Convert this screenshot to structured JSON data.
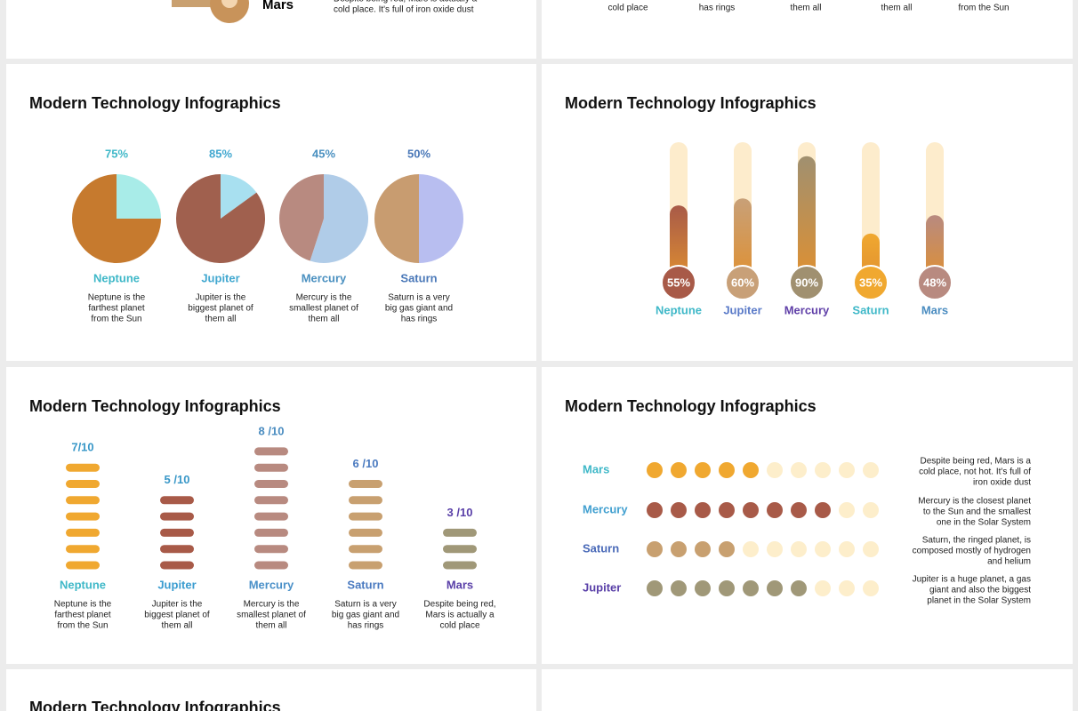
{
  "top_left": {
    "name": "Mars",
    "lines": [
      "Despite being red, Mars is actually a",
      "cold place. It's full of iron oxide dust"
    ]
  },
  "top_right": {
    "lines": [
      "cold place",
      "has rings",
      "them all",
      "them all",
      "from the Sun"
    ]
  },
  "pie_slide": {
    "title": "Modern Technology Infographics",
    "items": [
      {
        "name": "Neptune",
        "value": 75,
        "value_label": "75%",
        "color": "#c67a2e",
        "rest_color": "#a8ece8",
        "name_color": "#3fb8c8",
        "lines": [
          "Neptune is the",
          "farthest planet",
          "from the Sun"
        ]
      },
      {
        "name": "Jupiter",
        "value": 85,
        "value_label": "85%",
        "color": "#a0604e",
        "rest_color": "#a8e0f0",
        "name_color": "#42a8d0",
        "lines": [
          "Jupiter is the",
          "biggest planet of",
          "them all"
        ]
      },
      {
        "name": "Mercury",
        "value": 45,
        "value_label": "45%",
        "color": "#b88a80",
        "rest_color": "#b0cce8",
        "name_color": "#4a90c0",
        "lines": [
          "Mercury is the",
          "smallest planet of",
          "them all"
        ]
      },
      {
        "name": "Saturn",
        "value": 50,
        "value_label": "50%",
        "color": "#c89c70",
        "rest_color": "#b8bef0",
        "name_color": "#4a78b8",
        "lines": [
          "Saturn is a very",
          "big gas giant and",
          "has rings"
        ]
      }
    ]
  },
  "thermo_slide": {
    "title": "Modern Technology Infographics",
    "items": [
      {
        "name": "Neptune",
        "value": 55,
        "value_label": "55%",
        "color": "#a85a48",
        "name_color": "#3fb8c8"
      },
      {
        "name": "Jupiter",
        "value": 60,
        "value_label": "60%",
        "color": "#c8a078",
        "name_color": "#5a7ac8"
      },
      {
        "name": "Mercury",
        "value": 90,
        "value_label": "90%",
        "color": "#a09070",
        "name_color": "#6040a8"
      },
      {
        "name": "Saturn",
        "value": 35,
        "value_label": "35%",
        "color": "#f0a830",
        "name_color": "#3fb8c8"
      },
      {
        "name": "Mars",
        "value": 48,
        "value_label": "48%",
        "color": "#b88a80",
        "name_color": "#4a8cc0"
      }
    ]
  },
  "score_slide": {
    "title": "Modern Technology Infographics",
    "items": [
      {
        "name": "Neptune",
        "value": 7,
        "value_label": "7/10",
        "color": "#f0a830",
        "name_color": "#3fb8c8",
        "label_color": "#3a98c8",
        "lines": [
          "Neptune is the",
          "farthest planet",
          "from the Sun"
        ]
      },
      {
        "name": "Jupiter",
        "value": 5,
        "value_label": "5 /10",
        "color": "#a85a48",
        "name_color": "#3a9cd0",
        "label_color": "#3a98c8",
        "lines": [
          "Jupiter is the",
          "biggest planet of",
          "them all"
        ]
      },
      {
        "name": "Mercury",
        "value": 8,
        "value_label": "8 /10",
        "color": "#b88a80",
        "name_color": "#4a90c8",
        "label_color": "#4a8cc0",
        "lines": [
          "Mercury is the",
          "smallest planet of",
          "them all"
        ]
      },
      {
        "name": "Saturn",
        "value": 6,
        "value_label": "6 /10",
        "color": "#c8a070",
        "name_color": "#4a7ac0",
        "label_color": "#4a7ac0",
        "lines": [
          "Saturn is a very",
          "big gas giant and",
          "has rings"
        ]
      },
      {
        "name": "Mars",
        "value": 3,
        "value_label": "3 /10",
        "color": "#a09878",
        "name_color": "#5a40a8",
        "label_color": "#5a40a8",
        "lines": [
          "Despite being red,",
          "Mars is actually a",
          "cold place"
        ]
      }
    ]
  },
  "dot_slide": {
    "title": "Modern Technology Infographics",
    "total": 10,
    "items": [
      {
        "name": "Mars",
        "value": 5,
        "color": "#f0a830",
        "name_color": "#3fb8c8",
        "lines": [
          "Despite being red, Mars  is a",
          "cold place, not hot. It's full of",
          "iron oxide dust"
        ]
      },
      {
        "name": "Mercury",
        "value": 8,
        "color": "#a85a48",
        "name_color": "#42a0d0",
        "lines": [
          "Mercury is the closest planet",
          "to the Sun and the smallest",
          "one in the Solar System"
        ]
      },
      {
        "name": "Saturn",
        "value": 4,
        "color": "#c8a070",
        "name_color": "#4a6ab8",
        "lines": [
          "Saturn, the ringed planet, is",
          "composed mostly of hydrogen",
          "and helium"
        ]
      },
      {
        "name": "Jupiter",
        "value": 7,
        "color": "#a09878",
        "name_color": "#5a40a8",
        "lines": [
          "Jupiter is a huge planet, a gas",
          "giant and also the biggest",
          "planet in the Solar System"
        ]
      }
    ]
  },
  "bottom_slide": {
    "title": "Modern Technology Infographics"
  }
}
